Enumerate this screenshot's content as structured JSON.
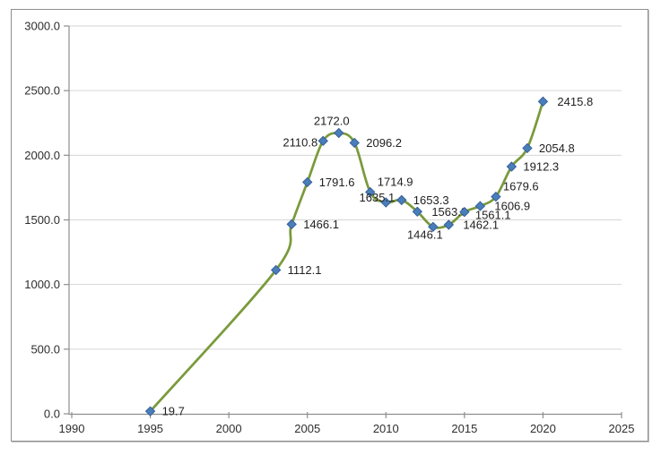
{
  "chart_data": {
    "type": "line",
    "title": "",
    "xlabel": "",
    "ylabel": "",
    "legend": "none",
    "grid": "horizontal",
    "xlim": [
      1990,
      2025
    ],
    "ylim": [
      0,
      3000
    ],
    "x_ticks": [
      {
        "v": 1990,
        "label": "1990"
      },
      {
        "v": 1995,
        "label": "1995"
      },
      {
        "v": 2000,
        "label": "2000"
      },
      {
        "v": 2005,
        "label": "2005"
      },
      {
        "v": 2010,
        "label": "2010"
      },
      {
        "v": 2015,
        "label": "2015"
      },
      {
        "v": 2020,
        "label": "2020"
      },
      {
        "v": 2025,
        "label": "2025"
      }
    ],
    "y_ticks": [
      {
        "v": 0,
        "label": "0.0"
      },
      {
        "v": 500,
        "label": "500.0"
      },
      {
        "v": 1000,
        "label": "1000.0"
      },
      {
        "v": 1500,
        "label": "1500.0"
      },
      {
        "v": 2000,
        "label": "2000.0"
      },
      {
        "v": 2500,
        "label": "2500.0"
      },
      {
        "v": 3000,
        "label": "3000.0"
      }
    ],
    "series": [
      {
        "name": "series-1",
        "smoothed": true,
        "points": [
          {
            "x": 1995,
            "y": 19.7,
            "label": "19.7",
            "label_pos": "right"
          },
          {
            "x": 2003,
            "y": 1112.1,
            "label": "1112.1",
            "label_pos": "right"
          },
          {
            "x": 2004,
            "y": 1466.1,
            "label": "1466.1",
            "label_pos": "right"
          },
          {
            "x": 2005,
            "y": 1791.6,
            "label": "1791.6",
            "label_pos": "right"
          },
          {
            "x": 2006,
            "y": 2110.8,
            "label": "2110.8",
            "label_pos": "left"
          },
          {
            "x": 2007,
            "y": 2172.0,
            "label": "2172.0",
            "label_pos": "above"
          },
          {
            "x": 2008,
            "y": 2096.2,
            "label": "2096.2",
            "label_pos": "right"
          },
          {
            "x": 2009,
            "y": 1714.9,
            "label": "1714.9",
            "label_pos": "above-right"
          },
          {
            "x": 2010,
            "y": 1635.1,
            "label": "1635.1",
            "label_pos": "left-overlap"
          },
          {
            "x": 2011,
            "y": 1653.3,
            "label": "1653.3",
            "label_pos": "right"
          },
          {
            "x": 2012,
            "y": 1563.8,
            "label": "1563.8",
            "label_pos": "right-far"
          },
          {
            "x": 2013,
            "y": 1446.1,
            "label": "1446.1",
            "label_pos": "below-left"
          },
          {
            "x": 2014,
            "y": 1462.1,
            "label": "1462.1",
            "label_pos": "right-far"
          },
          {
            "x": 2015,
            "y": 1561.1,
            "label": "1561.1",
            "label_pos": "right-low"
          },
          {
            "x": 2016,
            "y": 1606.9,
            "label": "1606.9",
            "label_pos": "right-far"
          },
          {
            "x": 2017,
            "y": 1679.6,
            "label": "1679.6",
            "label_pos": "above-right"
          },
          {
            "x": 2018,
            "y": 1912.3,
            "label": "1912.3",
            "label_pos": "right"
          },
          {
            "x": 2019,
            "y": 2054.8,
            "label": "2054.8",
            "label_pos": "right"
          },
          {
            "x": 2020,
            "y": 2415.8,
            "label": "2415.8",
            "label_pos": "right-far"
          }
        ]
      }
    ],
    "colors": {
      "line": "#7a9a3c",
      "marker": "#4a7eba",
      "marker_edge": "#35609a",
      "grid": "#d6d6d6",
      "axis": "#8e8e8e",
      "tick_text": "#2e2e2e",
      "data_label_text": "#1f1f1f",
      "frame": "#8f8f8f",
      "background": "#ffffff"
    }
  }
}
